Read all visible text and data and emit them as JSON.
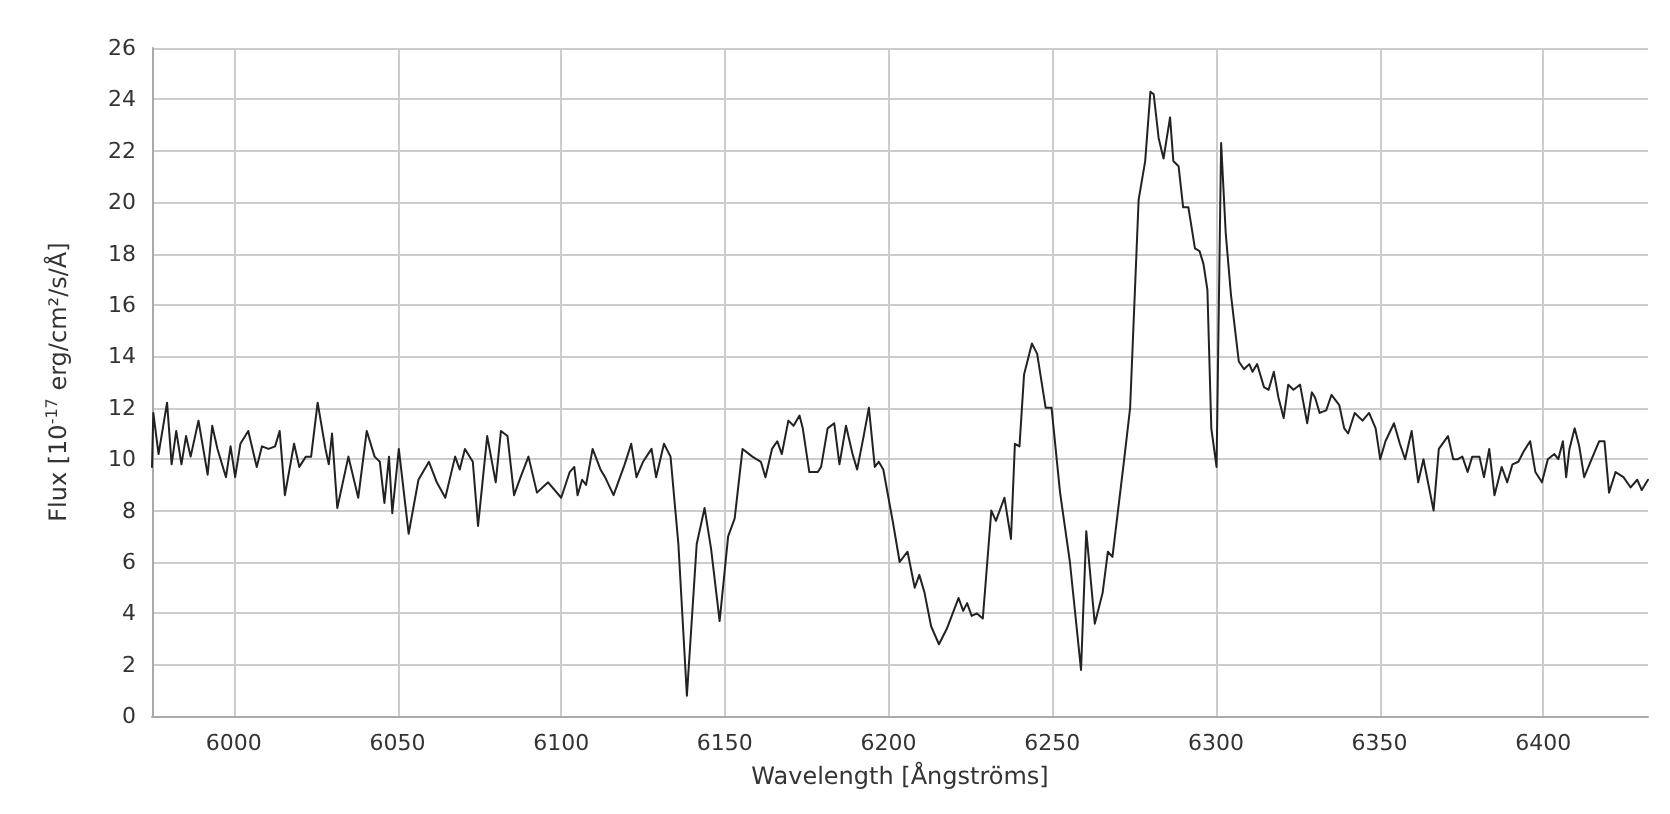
{
  "chart_data": {
    "type": "line",
    "xlabel": "Wavelength [Ångströms]",
    "ylabel": "Flux [10$^{-17}$ erg/cm²/s/Å]",
    "xlim": [
      5975,
      6432
    ],
    "ylim": [
      0,
      26
    ],
    "xticks": [
      6000,
      6050,
      6100,
      6150,
      6200,
      6250,
      6300,
      6350,
      6400
    ],
    "yticks": [
      0,
      2,
      4,
      6,
      8,
      10,
      12,
      14,
      16,
      18,
      20,
      22,
      24,
      26
    ],
    "grid": true,
    "marker": "none",
    "line_style": "solid",
    "series": [
      {
        "color": "#222222",
        "x": [
          5975,
          5975.4,
          5977,
          5979.6,
          5981,
          5982.4,
          5984,
          5985.4,
          5986.8,
          5989.2,
          5992,
          5993.4,
          5995,
          5997.6,
          5999,
          6000.4,
          6002,
          6004.4,
          6007,
          6008.6,
          6010.6,
          6012.6,
          6014,
          6015.6,
          6018.4,
          6020,
          6022,
          6023.6,
          6025.6,
          6028,
          6029,
          6030,
          6031.6,
          6035,
          6038,
          6040.6,
          6043,
          6044.6,
          6046,
          6047.4,
          6048.4,
          6050.4,
          6053.4,
          6056.4,
          6059.6,
          6062,
          6064.6,
          6067.6,
          6069,
          6070.6,
          6073,
          6074.6,
          6077.4,
          6080,
          6081.6,
          6083.6,
          6085.6,
          6087.6,
          6090,
          6092.6,
          6096,
          6100,
          6102.6,
          6104,
          6105,
          6106.4,
          6107.6,
          6109.6,
          6112,
          6113.4,
          6116,
          6117.4,
          6119.4,
          6121.4,
          6123,
          6125,
          6127.6,
          6129,
          6131.4,
          6133.4,
          6135.8,
          6138.4,
          6141.4,
          6143.8,
          6145.8,
          6148.4,
          6151,
          6153,
          6155.4,
          6158.4,
          6161,
          6162.4,
          6164.4,
          6166,
          6167.4,
          6169.4,
          6171,
          6172.8,
          6173.8,
          6175.8,
          6178.4,
          6179.4,
          6181.4,
          6183.4,
          6185,
          6187,
          6189,
          6190.4,
          6192.4,
          6194,
          6195.8,
          6197,
          6198.4,
          6201.4,
          6203.4,
          6205.8,
          6208,
          6209.4,
          6211,
          6213,
          6215.4,
          6217.8,
          6221.4,
          6222.8,
          6224,
          6225.4,
          6227,
          6228.8,
          6231.4,
          6232.8,
          6235.4,
          6237.4,
          6238.6,
          6240,
          6241.4,
          6243.8,
          6245.4,
          6248,
          6249.8,
          6252.4,
          6255.4,
          6258.8,
          6260.4,
          6263,
          6265.4,
          6267,
          6268.4,
          6271.8,
          6273.8,
          6276.4,
          6278.4,
          6280,
          6281,
          6282.5,
          6284,
          6286,
          6287,
          6288.6,
          6290,
          6291.6,
          6293.6,
          6295,
          6296.2,
          6297.4,
          6298.6,
          6300.2,
          6301.6,
          6303,
          6304.6,
          6307,
          6308.6,
          6310.2,
          6311.2,
          6312.6,
          6314.7,
          6316.1,
          6317.7,
          6319.1,
          6320.7,
          6322.1,
          6323.7,
          6325.7,
          6327.9,
          6329.3,
          6330.3,
          6331.7,
          6333.7,
          6335.3,
          6337.7,
          6339.2,
          6340.4,
          6342.4,
          6344.8,
          6346.8,
          6348.8,
          6350.2,
          6351.8,
          6354.4,
          6356.2,
          6357.8,
          6359.8,
          6361.8,
          6363.4,
          6366.5,
          6368.1,
          6370.9,
          6372.5,
          6373.9,
          6375.3,
          6376.9,
          6378.3,
          6380.5,
          6381.9,
          6383.5,
          6385.1,
          6387.3,
          6389,
          6390.6,
          6392.4,
          6394,
          6396,
          6397.6,
          6399.6,
          6401.4,
          6403.4,
          6404.6,
          6406,
          6407,
          6408,
          6409.6,
          6411,
          6412.5,
          6415.1,
          6417.1,
          6418.7,
          6420.1,
          6422.1,
          6424.5,
          6426.7,
          6428.7,
          6430.1,
          6432
        ],
        "values": [
          9.7,
          11.8,
          10.2,
          12.2,
          9.8,
          11.1,
          9.8,
          10.9,
          10.1,
          11.5,
          9.4,
          11.3,
          10.4,
          9.3,
          10.5,
          9.3,
          10.6,
          11.1,
          9.7,
          10.5,
          10.4,
          10.5,
          11.1,
          8.6,
          10.6,
          9.7,
          10.1,
          10.1,
          12.2,
          10.4,
          9.8,
          11.0,
          8.1,
          10.1,
          8.5,
          11.1,
          10.1,
          9.9,
          8.3,
          10.1,
          7.9,
          10.4,
          7.1,
          9.2,
          9.9,
          9.1,
          8.5,
          10.1,
          9.6,
          10.4,
          9.9,
          7.4,
          10.9,
          9.1,
          11.1,
          10.9,
          8.6,
          9.3,
          10.1,
          8.7,
          9.1,
          8.5,
          9.5,
          9.7,
          8.6,
          9.2,
          9.0,
          10.4,
          9.6,
          9.3,
          8.6,
          9.1,
          9.8,
          10.6,
          9.3,
          9.9,
          10.4,
          9.3,
          10.6,
          10.1,
          6.7,
          0.8,
          6.7,
          8.1,
          6.5,
          3.7,
          7.0,
          7.7,
          10.4,
          10.1,
          9.9,
          9.3,
          10.4,
          10.7,
          10.2,
          11.5,
          11.3,
          11.7,
          11.2,
          9.5,
          9.5,
          9.7,
          11.2,
          11.4,
          9.8,
          11.3,
          10.2,
          9.6,
          10.9,
          12.0,
          9.7,
          9.9,
          9.6,
          7.5,
          6.0,
          6.4,
          5.0,
          5.5,
          4.8,
          3.5,
          2.8,
          3.4,
          4.6,
          4.1,
          4.4,
          3.9,
          4.0,
          3.8,
          8.0,
          7.6,
          8.5,
          6.9,
          10.6,
          10.5,
          13.3,
          14.5,
          14.1,
          12.0,
          12.0,
          8.7,
          6.0,
          1.8,
          7.2,
          3.6,
          4.8,
          6.4,
          6.2,
          9.8,
          12.0,
          20.1,
          21.6,
          24.3,
          24.2,
          22.5,
          21.7,
          23.3,
          21.6,
          21.4,
          19.8,
          19.8,
          18.2,
          18.1,
          17.6,
          16.6,
          11.2,
          9.7,
          22.3,
          18.8,
          16.4,
          13.8,
          13.5,
          13.7,
          13.4,
          13.7,
          12.8,
          12.7,
          13.4,
          12.4,
          11.6,
          12.9,
          12.7,
          12.9,
          11.4,
          12.6,
          12.4,
          11.8,
          11.9,
          12.5,
          12.1,
          11.2,
          11.0,
          11.8,
          11.5,
          11.8,
          11.2,
          10.0,
          10.7,
          11.4,
          10.6,
          10.0,
          11.1,
          9.1,
          10.0,
          8.0,
          10.4,
          10.9,
          10.0,
          10.0,
          10.1,
          9.5,
          10.1,
          10.1,
          9.3,
          10.4,
          8.6,
          9.7,
          9.1,
          9.8,
          9.9,
          10.3,
          10.7,
          9.5,
          9.1,
          10.0,
          10.2,
          10.0,
          10.7,
          9.3,
          10.4,
          11.2,
          10.5,
          9.3,
          10.1,
          10.7,
          10.7,
          8.7,
          9.5,
          9.3,
          8.9,
          9.2,
          8.8,
          9.2
        ]
      }
    ]
  }
}
